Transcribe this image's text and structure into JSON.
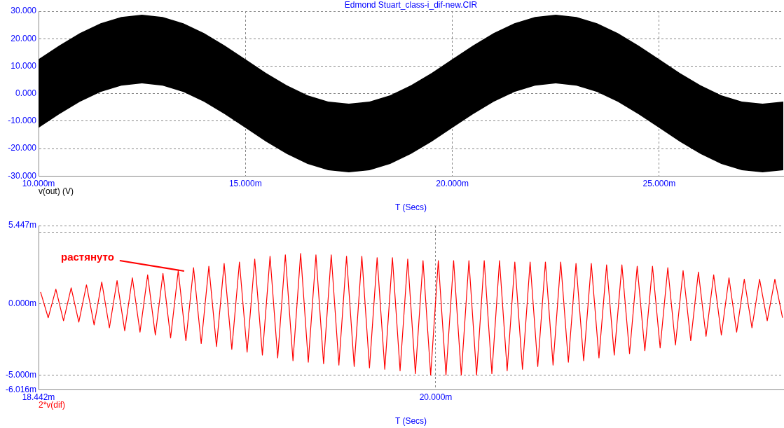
{
  "chart_data": [
    {
      "type": "line",
      "title": "Edmond Stuart_class-i_dif-new.CIR",
      "xlabel": "T (Secs)",
      "grid": true,
      "xlim": [
        10,
        28
      ],
      "xticks": [
        {
          "value": 10,
          "label": "10.000m"
        },
        {
          "value": 15,
          "label": "15.000m"
        },
        {
          "value": 20,
          "label": "20.000m"
        },
        {
          "value": 25,
          "label": "25.000m"
        }
      ],
      "ylim": [
        -30,
        30
      ],
      "yticks": [
        {
          "value": -30,
          "label": "-30.000"
        },
        {
          "value": -20,
          "label": "-20.000"
        },
        {
          "value": -10,
          "label": "-10.000"
        },
        {
          "value": 0,
          "label": "0.000"
        },
        {
          "value": 10,
          "label": "10.000"
        },
        {
          "value": 20,
          "label": "20.000"
        },
        {
          "value": 30,
          "label": "30.000"
        }
      ],
      "x": [
        10,
        10.5,
        11,
        11.5,
        12,
        12.5,
        13,
        13.5,
        14,
        14.5,
        15,
        15.5,
        16,
        16.5,
        17,
        17.5,
        18,
        18.5,
        19,
        19.5,
        20,
        20.5,
        21,
        21.5,
        22,
        22.5,
        23,
        23.5,
        24,
        24.5,
        25,
        25.5,
        26,
        26.5,
        27,
        27.5,
        28
      ],
      "series": [
        {
          "name": "v(out) (V)",
          "color": "#000000",
          "values": [
            null,
            null,
            null,
            null,
            null,
            null,
            null,
            null,
            null,
            null,
            null,
            null,
            null,
            null,
            null,
            null,
            null,
            null,
            null,
            null,
            null,
            null,
            null,
            null,
            null,
            null,
            null,
            null,
            null,
            null,
            null,
            null,
            null,
            null,
            null,
            null,
            null
          ],
          "lower": [
            -12.5,
            -7.5,
            -3.0,
            0.6,
            2.9,
            3.7,
            2.9,
            0.6,
            -3.0,
            -7.5,
            -12.5,
            -17.5,
            -22.0,
            -25.6,
            -27.9,
            -28.7,
            -27.9,
            -25.6,
            -22.0,
            -17.5,
            -12.5,
            -7.5,
            -3.0,
            0.6,
            2.9,
            3.7,
            2.9,
            0.6,
            -3.0,
            -7.5,
            -12.5,
            -17.5,
            -22.0,
            -25.6,
            -27.9,
            -28.7,
            -27.9
          ],
          "upper": [
            12.5,
            17.5,
            22.0,
            25.6,
            27.9,
            28.7,
            27.9,
            25.6,
            22.0,
            17.5,
            12.5,
            7.5,
            3.0,
            -0.6,
            -2.9,
            -3.7,
            -2.9,
            -0.6,
            3.0,
            7.5,
            12.5,
            17.5,
            22.0,
            25.6,
            27.9,
            28.7,
            27.9,
            25.6,
            22.0,
            17.5,
            12.5,
            7.5,
            3.0,
            -0.6,
            -2.9,
            -3.7,
            -2.9
          ]
        }
      ]
    },
    {
      "type": "line",
      "xlabel": "T (Secs)",
      "grid": true,
      "annotations": [
        "растянуто"
      ],
      "xlim": [
        18.442,
        21.363
      ],
      "xticks": [
        {
          "value": 18.442,
          "label": "18.442m"
        },
        {
          "value": 20,
          "label": "20.000m"
        }
      ],
      "ylim": [
        -6.016,
        5.447
      ],
      "yticks": [
        {
          "value": -6.016,
          "label": "-6.016m"
        },
        {
          "value": -5,
          "label": "-5.000m"
        },
        {
          "value": 0,
          "label": "0.000m"
        },
        {
          "value": 5,
          "label": null
        },
        {
          "value": 5.447,
          "label": "5.447m"
        }
      ],
      "x": [
        18.45,
        18.48,
        18.51,
        18.54,
        18.57,
        18.6,
        18.63,
        18.66,
        18.69,
        18.72,
        18.75,
        18.78,
        18.81,
        18.84,
        18.87,
        18.9,
        18.93,
        18.96,
        18.99,
        19.02,
        19.05,
        19.08,
        19.11,
        19.14,
        19.17,
        19.2,
        19.23,
        19.26,
        19.29,
        19.32,
        19.35,
        19.38,
        19.41,
        19.44,
        19.47,
        19.5,
        19.53,
        19.56,
        19.59,
        19.62,
        19.65,
        19.68,
        19.71,
        19.74,
        19.77,
        19.8,
        19.83,
        19.86,
        19.89,
        19.92,
        19.95,
        19.98,
        20.01,
        20.04,
        20.07,
        20.1,
        20.13,
        20.16,
        20.19,
        20.22,
        20.25,
        20.28,
        20.31,
        20.34,
        20.37,
        20.4,
        20.43,
        20.46,
        20.49,
        20.52,
        20.55,
        20.58,
        20.61,
        20.64,
        20.67,
        20.7,
        20.73,
        20.76,
        20.79,
        20.82,
        20.85,
        20.88,
        20.91,
        20.94,
        20.97,
        21,
        21.03,
        21.06,
        21.09,
        21.12,
        21.15,
        21.18,
        21.21,
        21.24,
        21.27,
        21.3,
        21.33,
        21.36
      ],
      "series": [
        {
          "name": "2*v(dif)",
          "color": "#ff0000",
          "values": [
            0.8,
            -1.0,
            1.0,
            -1.2,
            1.1,
            -1.3,
            1.3,
            -1.5,
            1.5,
            -1.7,
            1.6,
            -1.9,
            1.8,
            -2.0,
            2.0,
            -2.2,
            2.1,
            -2.4,
            2.3,
            -2.6,
            2.5,
            -2.8,
            2.6,
            -3.0,
            2.8,
            -3.2,
            2.9,
            -3.4,
            3.1,
            -3.6,
            3.3,
            -3.8,
            3.4,
            -4.0,
            3.5,
            -4.1,
            3.4,
            -4.2,
            3.4,
            -4.3,
            3.3,
            -4.4,
            3.3,
            -4.5,
            3.2,
            -4.6,
            3.2,
            -4.7,
            3.1,
            -4.9,
            3.0,
            -5.0,
            3.0,
            -5.0,
            3.0,
            -5.0,
            3.0,
            -5.0,
            3.0,
            -4.9,
            3.0,
            -4.7,
            2.9,
            -4.6,
            2.9,
            -4.4,
            2.9,
            -4.3,
            2.9,
            -4.1,
            2.8,
            -4.0,
            2.8,
            -3.8,
            2.7,
            -3.6,
            2.7,
            -3.5,
            2.6,
            -3.3,
            2.6,
            -3.1,
            2.5,
            -2.9,
            2.3,
            -2.6,
            2.2,
            -2.3,
            2.0,
            -2.2,
            1.8,
            -2.0,
            1.7,
            -1.7,
            1.7,
            -1.2,
            1.7,
            -1.0
          ]
        }
      ]
    }
  ]
}
